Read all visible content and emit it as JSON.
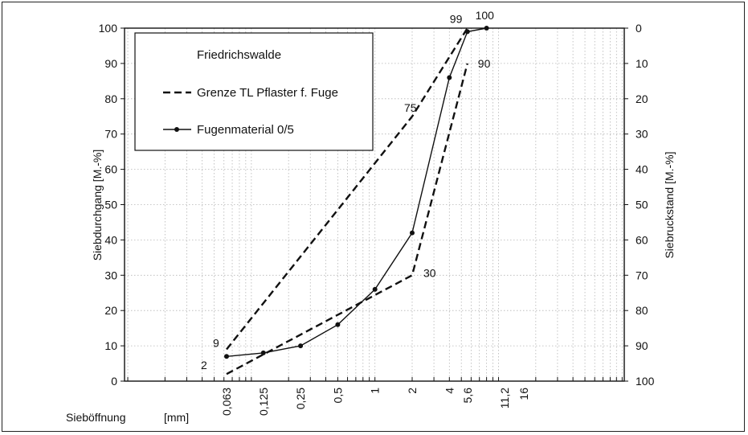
{
  "chart_data": {
    "type": "line",
    "xscale": "log",
    "xlabel": "Sieböffnung",
    "xunit": "[mm]",
    "ylabel_left": "Siebdurchgang  [M.-%]",
    "ylabel_right": "Siebruckstand  [M.-%]",
    "ylim": [
      0,
      100
    ],
    "xticks": [
      "0,063",
      "0,125",
      "0,25",
      "0,5",
      "1",
      "2",
      "4",
      "5,6",
      "11,2",
      "16"
    ],
    "yticks_left": [
      "0",
      "10",
      "20",
      "30",
      "40",
      "50",
      "60",
      "70",
      "80",
      "90",
      "100"
    ],
    "yticks_right": [
      "100",
      "90",
      "80",
      "70",
      "60",
      "50",
      "40",
      "30",
      "20",
      "10",
      "0"
    ],
    "legend": {
      "title": "Friedrichswalde",
      "placement": "top-left",
      "items": [
        {
          "label": "Grenze TL Pflaster f. Fuge",
          "style": "dashed"
        },
        {
          "label": "Fugenmaterial 0/5",
          "style": "solid-marker"
        }
      ]
    },
    "series": [
      {
        "key": "upper",
        "style": "dashed",
        "x": [
          0.063,
          2,
          5.6
        ],
        "y": [
          9,
          75,
          100
        ]
      },
      {
        "key": "lower",
        "style": "dashed",
        "x": [
          0.063,
          2,
          5.6
        ],
        "y": [
          2,
          30,
          90
        ]
      },
      {
        "key": "material",
        "style": "solid-marker",
        "x": [
          0.063,
          0.125,
          0.25,
          0.5,
          1,
          2,
          4,
          5.6,
          8
        ],
        "y": [
          7,
          8,
          10,
          16,
          26,
          42,
          86,
          99,
          100
        ]
      }
    ],
    "annotations": [
      {
        "text": "9",
        "x": 0.063,
        "y": 9
      },
      {
        "text": "2",
        "x": 0.063,
        "y": 2
      },
      {
        "text": "75",
        "x": 2,
        "y": 75
      },
      {
        "text": "30",
        "x": 2,
        "y": 30
      },
      {
        "text": "90",
        "x": 5.6,
        "y": 90
      },
      {
        "text": "99",
        "x": 5.6,
        "y": 99
      },
      {
        "text": "100",
        "x": 8,
        "y": 100
      }
    ]
  }
}
